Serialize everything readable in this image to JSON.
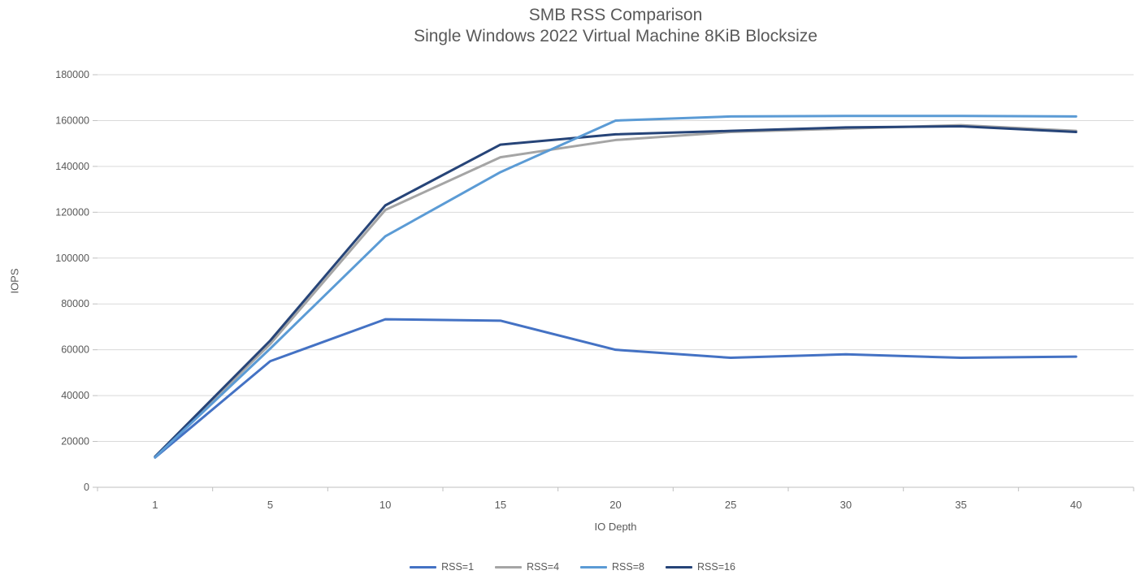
{
  "chart_data": {
    "type": "line",
    "title": "SMB RSS Comparison",
    "subtitle": "Single Windows 2022 Virtual Machine 8KiB Blocksize",
    "xlabel": "IO Depth",
    "ylabel": "IOPS",
    "categories": [
      "1",
      "5",
      "10",
      "15",
      "20",
      "25",
      "30",
      "35",
      "40"
    ],
    "y_ticks": [
      0,
      20000,
      40000,
      60000,
      80000,
      100000,
      120000,
      140000,
      160000,
      180000
    ],
    "ylim": [
      0,
      180000
    ],
    "grid": true,
    "legend_position": "bottom",
    "series": [
      {
        "name": "RSS=1",
        "color": "#4472C4",
        "values": [
          13000,
          55000,
          73300,
          72700,
          60000,
          56500,
          58000,
          56500,
          57000
        ]
      },
      {
        "name": "RSS=4",
        "color": "#A5A5A5",
        "values": [
          13200,
          62500,
          121000,
          144000,
          151500,
          155000,
          156500,
          158000,
          155500
        ]
      },
      {
        "name": "RSS=8",
        "color": "#5B9BD5",
        "values": [
          13100,
          60500,
          109500,
          137500,
          160000,
          161800,
          162000,
          162000,
          161800
        ]
      },
      {
        "name": "RSS=16",
        "color": "#264478",
        "values": [
          13400,
          64000,
          123000,
          149500,
          154000,
          155500,
          157000,
          157500,
          155000
        ]
      }
    ]
  },
  "colors": {
    "text": "#595959",
    "gridline": "#D9D9D9",
    "axis": "#BFBFBF",
    "background": "#FFFFFF"
  }
}
